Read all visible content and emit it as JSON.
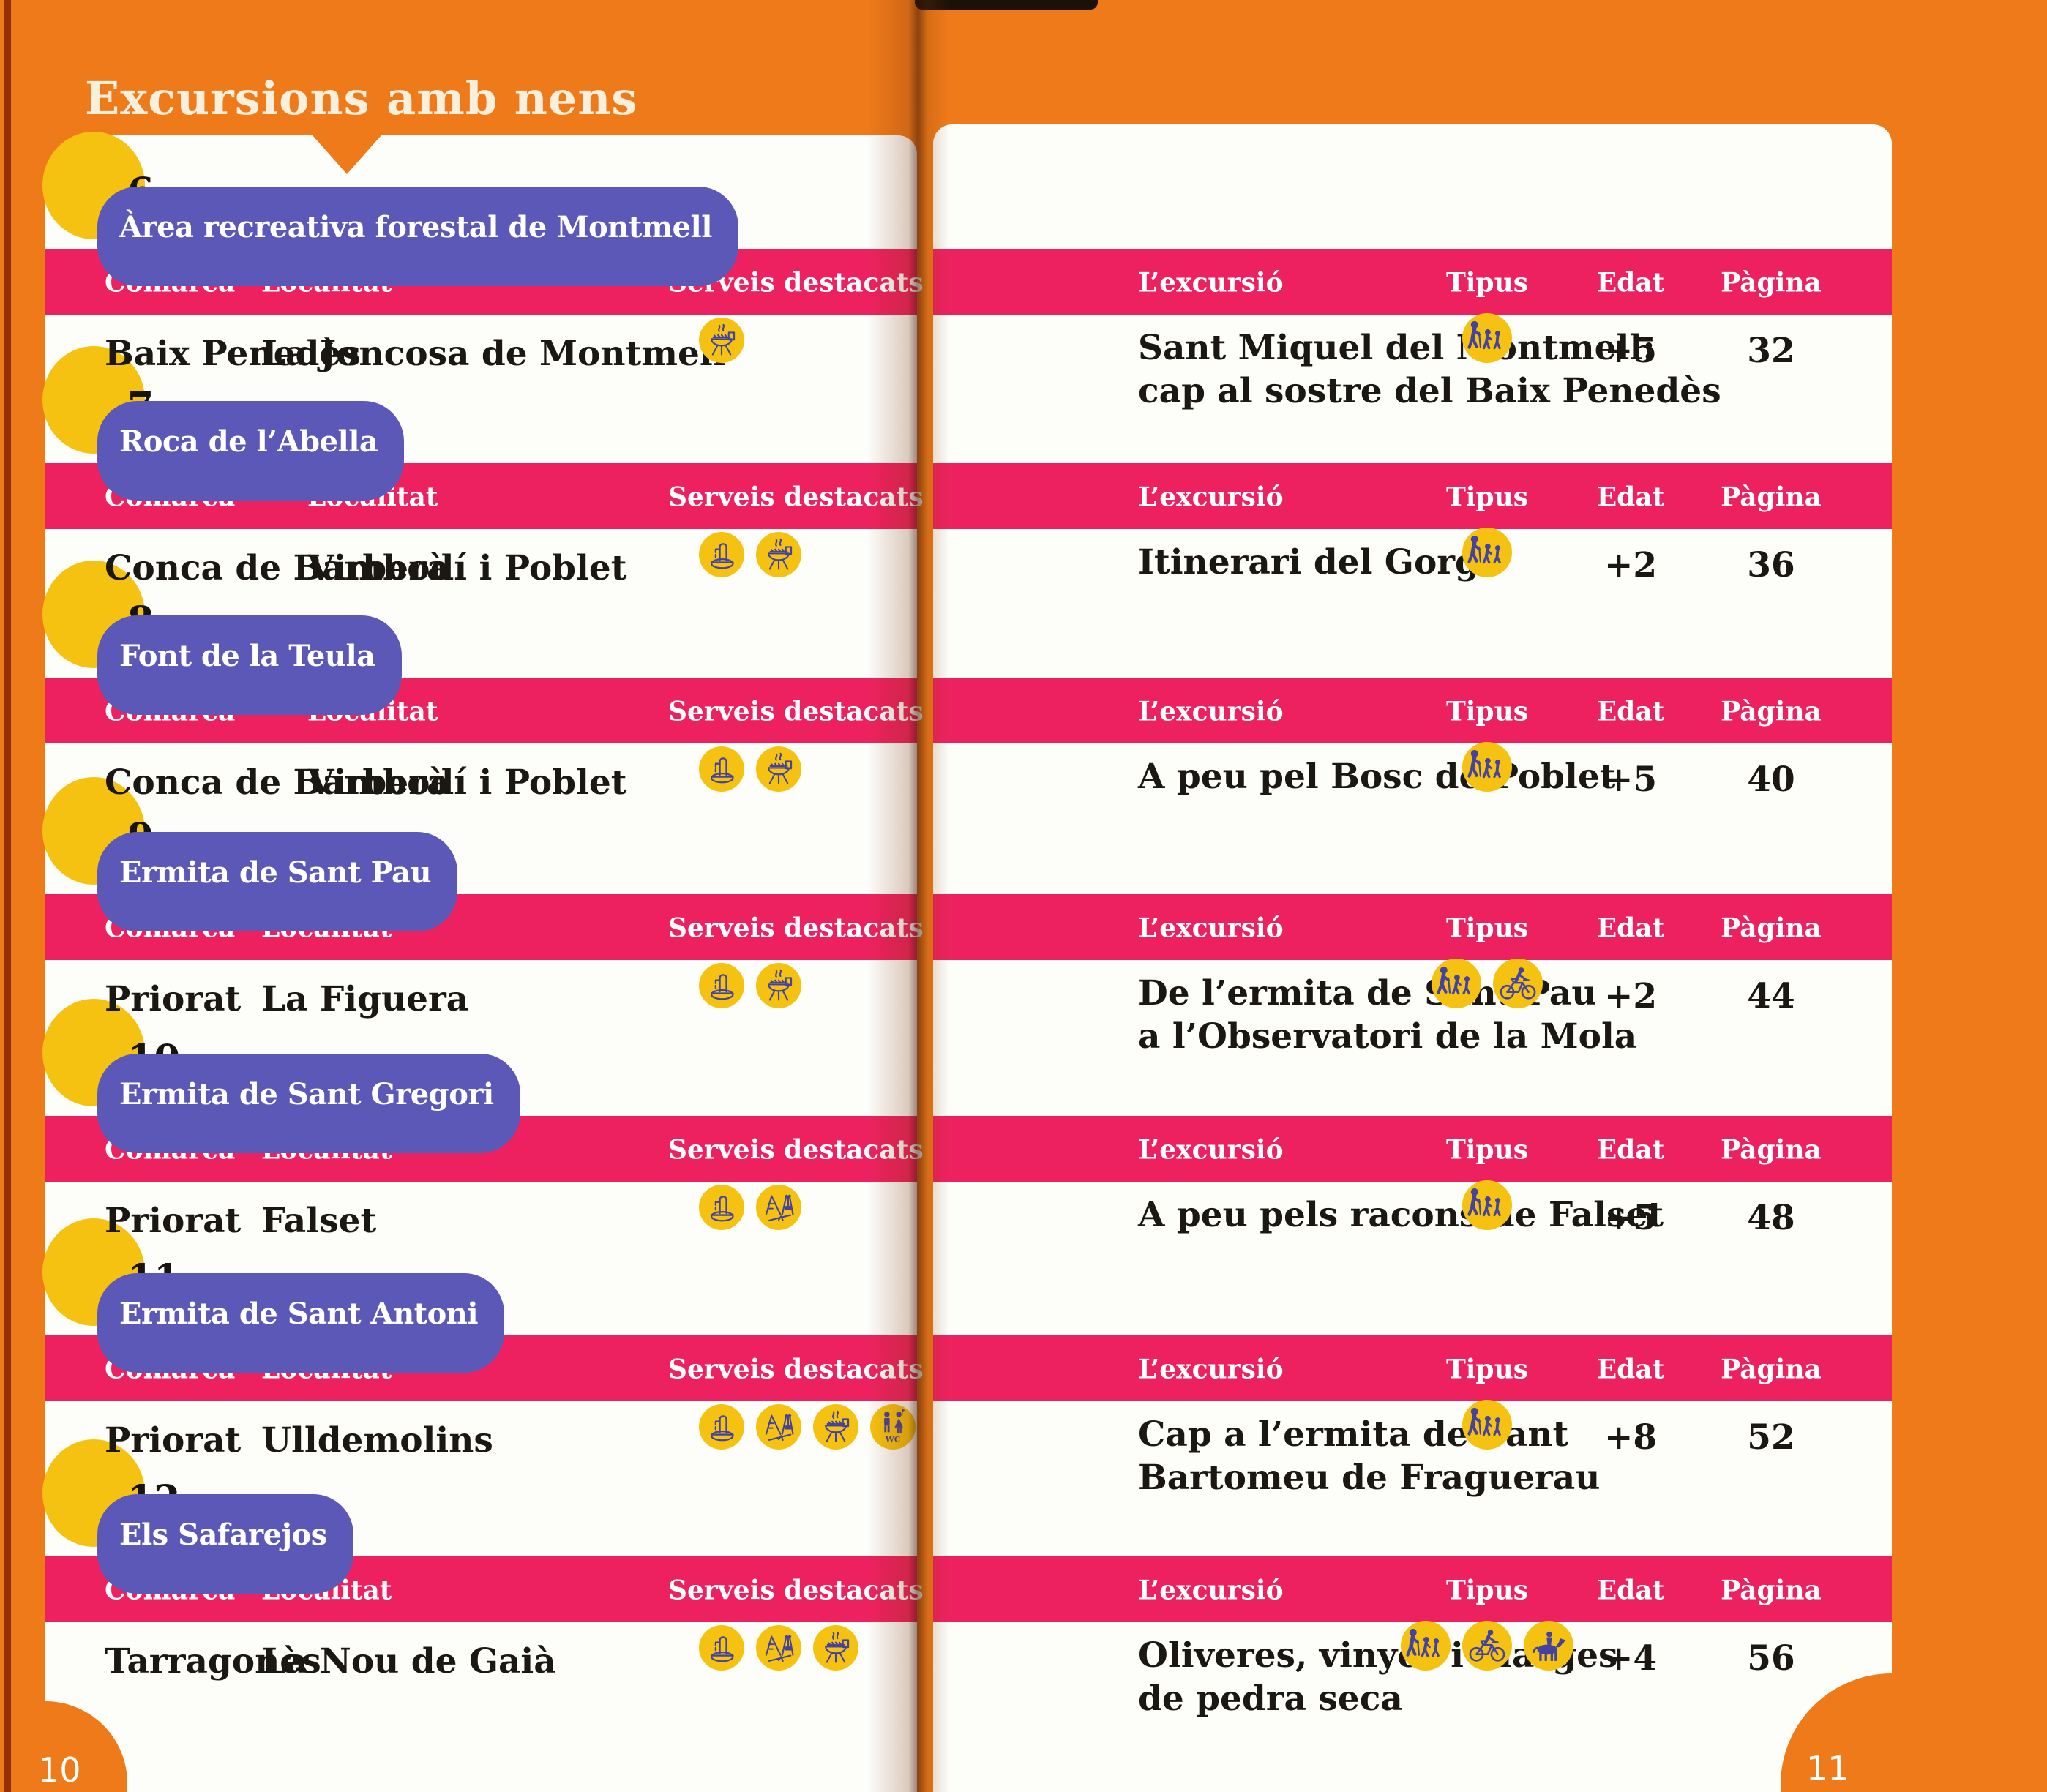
{
  "book": {
    "title": "Excursions amb nens",
    "left_page_number": "10",
    "right_page_number": "11"
  },
  "table_headers": {
    "left": {
      "comarca": "Comarca",
      "localitat": "Localitat",
      "serveis": "Serveis destacats"
    },
    "right": {
      "excursio": "L’excursió",
      "tipus": "Tipus",
      "edat": "Edat",
      "pagina": "Pàgina"
    }
  },
  "colors": {
    "orange": "#ef7a1a",
    "pink": "#ee2160",
    "blue": "#5b58b7",
    "yellow": "#f5c211",
    "icon_stroke": "#44439f",
    "paper": "#fdfdfa",
    "title_cream": "#f8efdc"
  },
  "icon_legend": {
    "fountain": "drinking-fountain",
    "barbecue": "barbecue-area",
    "playground": "playground",
    "toilets": "toilets-WC",
    "hiking": "walking-excursion",
    "cycling": "bicycle-excursion",
    "horse-riding": "horseback-excursion"
  },
  "entries": [
    {
      "number": "6",
      "name": "Àrea recreativa forestal de Montmell",
      "comarca": "Baix Penedès",
      "localitat": "La Joncosa de Montmell",
      "serveis": [
        "barbecue"
      ],
      "excursio_lines": [
        "Sant Miquel del Montmell:",
        "cap al sostre del Baix Penedès"
      ],
      "tipus": [
        "hiking"
      ],
      "edat": "+5",
      "pagina": "32"
    },
    {
      "number": "7",
      "name": "Roca de l’Abella",
      "comarca": "Conca de Barberà",
      "localitat": "Vimbodí i Poblet",
      "serveis": [
        "fountain",
        "barbecue"
      ],
      "excursio_lines": [
        "Itinerari del Gorg"
      ],
      "tipus": [
        "hiking"
      ],
      "edat": "+2",
      "pagina": "36"
    },
    {
      "number": "8",
      "name": "Font de la Teula",
      "comarca": "Conca de Barberà",
      "localitat": "Vimbodí i Poblet",
      "serveis": [
        "fountain",
        "barbecue"
      ],
      "excursio_lines": [
        "A peu pel Bosc de Poblet"
      ],
      "tipus": [
        "hiking"
      ],
      "edat": "+5",
      "pagina": "40"
    },
    {
      "number": "9",
      "name": "Ermita de Sant Pau",
      "comarca": "Priorat",
      "localitat": "La Figuera",
      "serveis": [
        "fountain",
        "barbecue"
      ],
      "excursio_lines": [
        "De l’ermita de Sant Pau",
        "a l’Observatori de la Mola"
      ],
      "tipus": [
        "hiking",
        "cycling"
      ],
      "edat": "+2",
      "pagina": "44"
    },
    {
      "number": "10",
      "name": "Ermita de Sant Gregori",
      "comarca": "Priorat",
      "localitat": "Falset",
      "serveis": [
        "fountain",
        "playground"
      ],
      "excursio_lines": [
        "A peu pels racons de Falset"
      ],
      "tipus": [
        "hiking"
      ],
      "edat": "+5",
      "pagina": "48"
    },
    {
      "number": "11",
      "name": "Ermita de Sant Antoni",
      "comarca": "Priorat",
      "localitat": "Ulldemolins",
      "serveis": [
        "fountain",
        "playground",
        "barbecue",
        "toilets"
      ],
      "excursio_lines": [
        "Cap a l’ermita de Sant",
        "Bartomeu de Fraguerau"
      ],
      "tipus": [
        "hiking"
      ],
      "edat": "+8",
      "pagina": "52"
    },
    {
      "number": "12",
      "name": "Els Safarejos",
      "comarca": "Tarragonès",
      "localitat": "La Nou de Gaià",
      "serveis": [
        "fountain",
        "playground",
        "barbecue"
      ],
      "excursio_lines": [
        "Oliveres, vinyes i marges",
        "de pedra seca"
      ],
      "tipus": [
        "hiking",
        "cycling",
        "horse-riding"
      ],
      "edat": "+4",
      "pagina": "56"
    }
  ]
}
